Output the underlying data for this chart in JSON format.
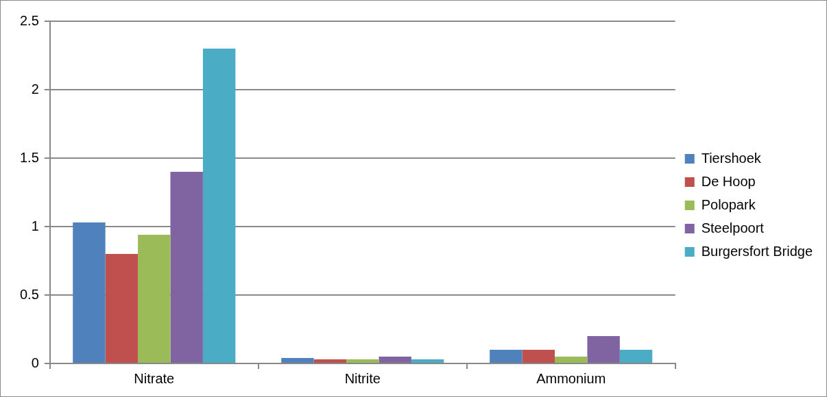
{
  "chart_data": {
    "type": "bar",
    "categories": [
      "Nitrate",
      "Nitrite",
      "Ammonium"
    ],
    "series": [
      {
        "name": "Tiershoek",
        "color": "#4f81bd",
        "values": [
          1.03,
          0.04,
          0.1
        ]
      },
      {
        "name": "De Hoop",
        "color": "#c0504d",
        "values": [
          0.8,
          0.03,
          0.1
        ]
      },
      {
        "name": "Polopark",
        "color": "#9bbb59",
        "values": [
          0.94,
          0.03,
          0.05
        ]
      },
      {
        "name": "Steelpoort",
        "color": "#8064a2",
        "values": [
          1.4,
          0.05,
          0.2
        ]
      },
      {
        "name": "Burgersfort Bridge",
        "color": "#4bacc6",
        "values": [
          2.3,
          0.03,
          0.1
        ]
      }
    ],
    "ylim": [
      0,
      2.5
    ],
    "yticks": [
      0,
      0.5,
      1,
      1.5,
      2,
      2.5
    ],
    "grid": "y",
    "legend": "right"
  }
}
